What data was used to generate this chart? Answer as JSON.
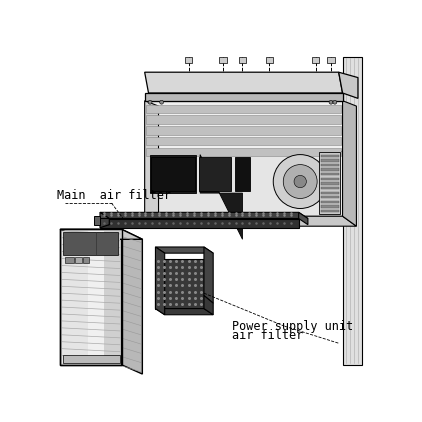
{
  "background_color": "#ffffff",
  "label_main_filter": "Main  air filter",
  "label_psu_filter_line1": "Power supply unit",
  "label_psu_filter_line2": "air filter",
  "label_fontsize": 8.5,
  "fig_width": 4.22,
  "fig_height": 4.22,
  "dpi": 100,
  "lc": "#000000",
  "gray_light": "#e8e8e8",
  "gray_mid": "#c0c0c0",
  "gray_dark": "#888888",
  "filter_dark": "#3a3a3a",
  "filter_mid": "#555555",
  "white": "#ffffff"
}
